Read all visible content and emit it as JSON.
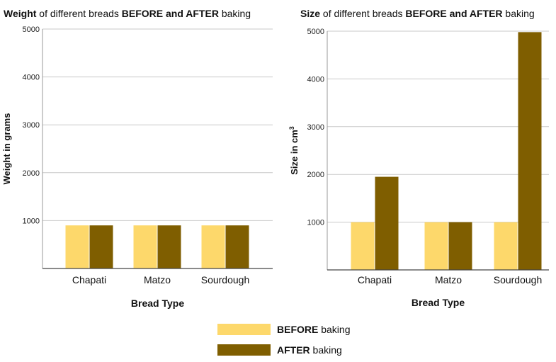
{
  "chart_data": [
    {
      "type": "bar",
      "title_parts": [
        {
          "text": "Weight",
          "bold": true
        },
        {
          "text": " of different  breads ",
          "bold": false
        },
        {
          "text": "BEFORE and AFTER",
          "bold": true
        },
        {
          "text": " baking",
          "bold": false
        }
      ],
      "xlabel": "Bread Type",
      "ylabel": "Weight in grams",
      "ylim": [
        0,
        5000
      ],
      "yticks": [
        1000,
        2000,
        3000,
        4000,
        5000
      ],
      "categories": [
        "Chapati",
        "Matzo",
        "Sourdough"
      ],
      "series": [
        {
          "name": "BEFORE baking",
          "color": "#FDD86B",
          "values": [
            900,
            900,
            900
          ]
        },
        {
          "name": "AFTER baking",
          "color": "#7F5E00",
          "values": [
            900,
            900,
            900
          ]
        }
      ],
      "grid": true
    },
    {
      "type": "bar",
      "title_parts": [
        {
          "text": "Size",
          "bold": true
        },
        {
          "text": " of different  breads ",
          "bold": false
        },
        {
          "text": "BEFORE and AFTER",
          "bold": true
        },
        {
          "text": " baking",
          "bold": false
        }
      ],
      "xlabel": "Bread Type",
      "ylabel": "Size in cm",
      "ylabel_sup": "3",
      "ylim": [
        0,
        5000
      ],
      "yticks": [
        1000,
        2000,
        3000,
        4000,
        5000
      ],
      "categories": [
        "Chapati",
        "Matzo",
        "Sourdough"
      ],
      "series": [
        {
          "name": "BEFORE baking",
          "color": "#FDD86B",
          "values": [
            1000,
            1000,
            1000
          ]
        },
        {
          "name": "AFTER baking",
          "color": "#7F5E00",
          "values": [
            1950,
            1000,
            4980
          ]
        }
      ],
      "grid": true
    }
  ],
  "legend": {
    "placement": "bottom-center",
    "items": [
      {
        "bold": "BEFORE",
        "rest": " baking",
        "color": "#FDD86B"
      },
      {
        "bold": "AFTER",
        "rest": " baking",
        "color": "#7F5E00"
      }
    ]
  }
}
